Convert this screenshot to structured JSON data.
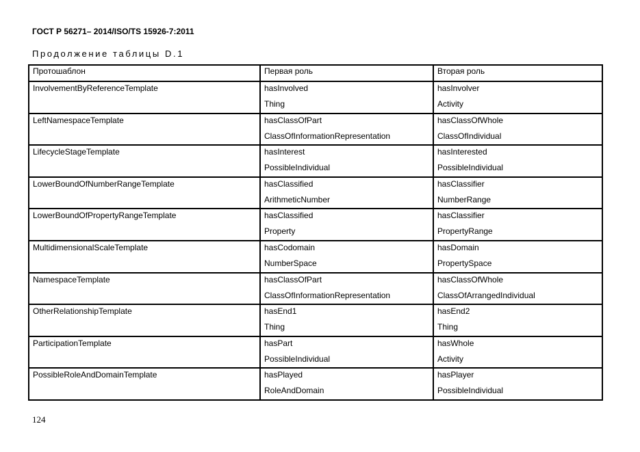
{
  "header": {
    "doc_title": "ГОСТ Р 56271– 2014/ISO/TS 15926-7:2011",
    "caption": "Продолжение таблицы D.1"
  },
  "table": {
    "columns": [
      "Протошаблон",
      "Первая роль",
      "Вторая роль"
    ],
    "rows": [
      {
        "template": "InvolvementByReferenceTemplate",
        "role1": [
          "hasInvolved",
          "Thing"
        ],
        "role2": [
          "hasInvolver",
          "Activity"
        ]
      },
      {
        "template": "LeftNamespaceTemplate",
        "role1": [
          "hasClassOfPart",
          "ClassOfInformationRepresentation"
        ],
        "role2": [
          "hasClassOfWhole",
          "ClassOfIndividual"
        ]
      },
      {
        "template": "LifecycleStageTemplate",
        "role1": [
          "hasInterest",
          "PossibleIndividual"
        ],
        "role2": [
          "hasInterested",
          "PossibleIndividual"
        ]
      },
      {
        "template": "LowerBoundOfNumberRangeTemplate",
        "role1": [
          "hasClassified",
          "ArithmeticNumber"
        ],
        "role2": [
          "hasClassifier",
          "NumberRange"
        ]
      },
      {
        "template": "LowerBoundOfPropertyRangeTemplate",
        "role1": [
          "hasClassified",
          "Property"
        ],
        "role2": [
          "hasClassifier",
          "PropertyRange"
        ]
      },
      {
        "template": "MultidimensionalScaleTemplate",
        "role1": [
          "hasCodomain",
          "NumberSpace"
        ],
        "role2": [
          "hasDomain",
          "PropertySpace"
        ]
      },
      {
        "template": "NamespaceTemplate",
        "role1": [
          "hasClassOfPart",
          "ClassOfInformationRepresentation"
        ],
        "role2": [
          "hasClassOfWhole",
          "ClassOfArrangedIndividual"
        ]
      },
      {
        "template": "OtherRelationshipTemplate",
        "role1": [
          "hasEnd1",
          "Thing"
        ],
        "role2": [
          "hasEnd2",
          "Thing"
        ]
      },
      {
        "template": "ParticipationTemplate",
        "role1": [
          "hasPart",
          "PossibleIndividual"
        ],
        "role2": [
          "hasWhole",
          "Activity"
        ]
      },
      {
        "template": "PossibleRoleAndDomainTemplate",
        "role1": [
          "hasPlayed",
          "RoleAndDomain"
        ],
        "role2": [
          "hasPlayer",
          "PossibleIndividual"
        ]
      }
    ]
  },
  "footer": {
    "page_number": "124"
  }
}
